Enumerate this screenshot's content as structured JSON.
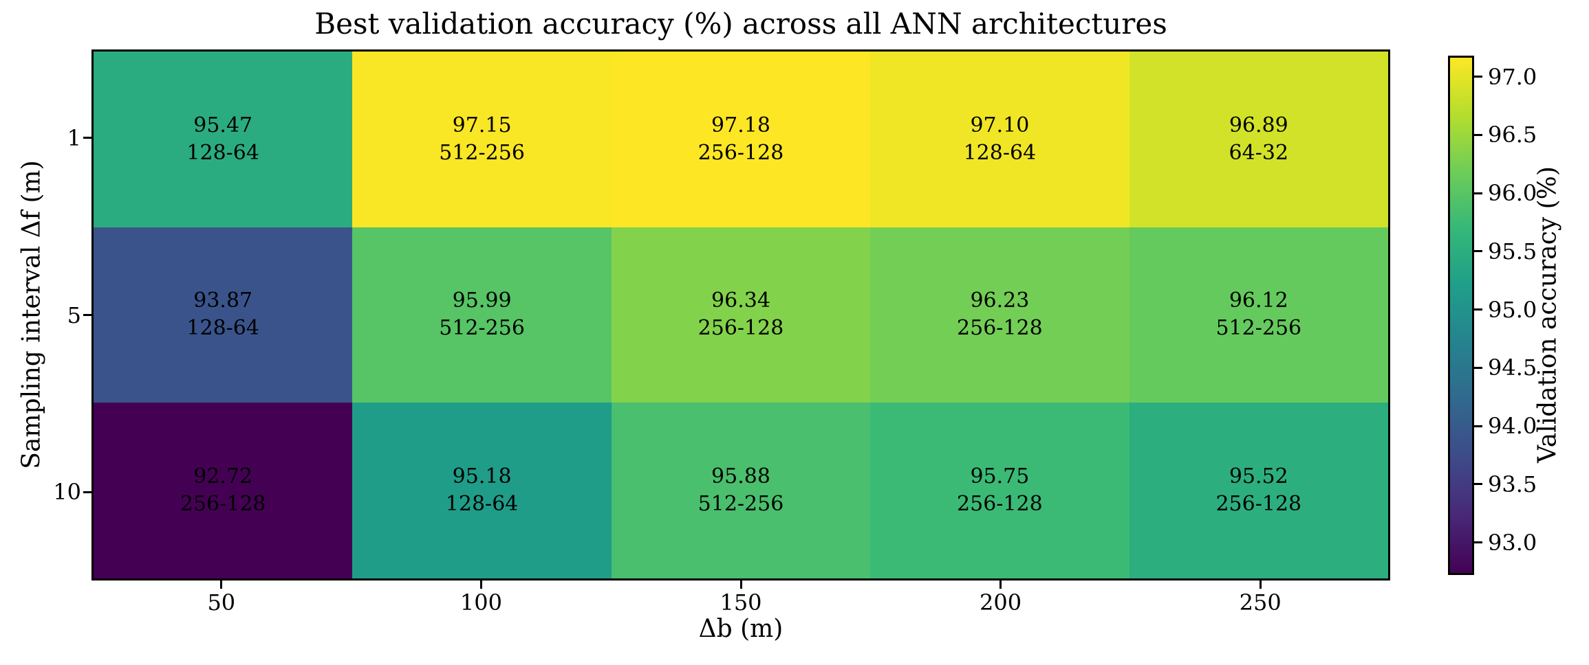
{
  "chart_data": {
    "type": "heatmap",
    "title": "Best validation accuracy (%) across all ANN architectures",
    "xlabel": "Δb (m)",
    "ylabel": "Sampling interval Δf (m)",
    "x_categories": [
      "50",
      "100",
      "150",
      "200",
      "250"
    ],
    "y_categories": [
      "1",
      "5",
      "10"
    ],
    "cell_text_format": "accuracy value (%) on first line, ANN architecture on second line",
    "rows": [
      {
        "y": "1",
        "values": [
          "95.47",
          "97.15",
          "97.18",
          "97.10",
          "96.89"
        ],
        "architectures": [
          "128-64",
          "512-256",
          "256-128",
          "128-64",
          "64-32"
        ]
      },
      {
        "y": "5",
        "values": [
          "93.87",
          "95.99",
          "96.34",
          "96.23",
          "96.12"
        ],
        "architectures": [
          "128-64",
          "512-256",
          "256-128",
          "256-128",
          "512-256"
        ]
      },
      {
        "y": "10",
        "values": [
          "92.72",
          "95.18",
          "95.88",
          "95.75",
          "95.52"
        ],
        "architectures": [
          "256-128",
          "128-64",
          "512-256",
          "256-128",
          "256-128"
        ]
      }
    ],
    "colorbar": {
      "label": "Validation accuracy (%)",
      "tick_labels": [
        "97.0",
        "96.5",
        "96.0",
        "95.5",
        "95.0",
        "94.5",
        "94.0",
        "93.5",
        "93.0"
      ],
      "vmin": 92.72,
      "vmax": 97.18,
      "colormap": "viridis",
      "colormap_stops": [
        "#440154",
        "#482878",
        "#3e4a89",
        "#31688e",
        "#26828e",
        "#1f9e89",
        "#35b779",
        "#6dcd59",
        "#b4de2c",
        "#fde725"
      ]
    },
    "grid": false,
    "legend": false,
    "text_color": "#000000",
    "axes_edge_color": "#000000",
    "background_color": "#ffffff"
  }
}
